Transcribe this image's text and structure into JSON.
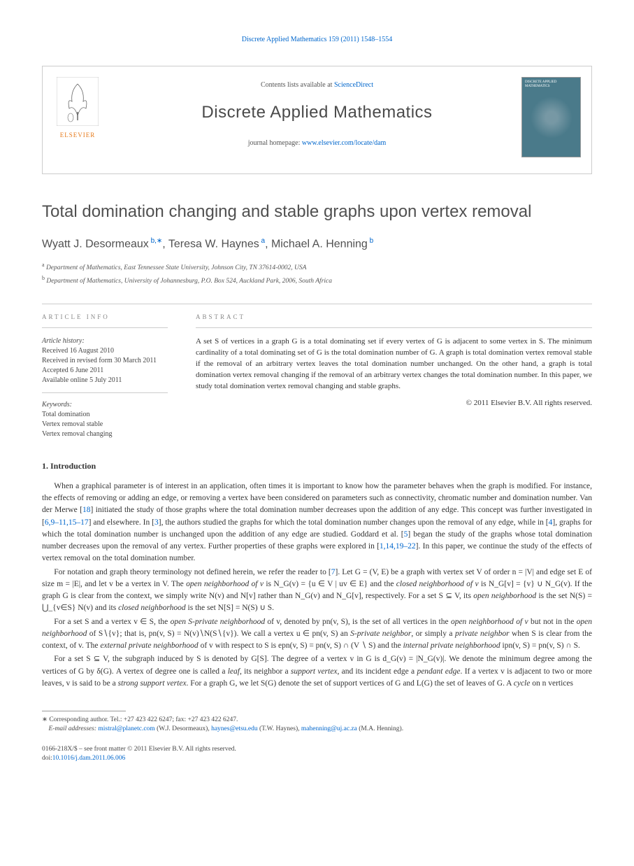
{
  "running_head": {
    "text_before": "Discrete Applied Mathematics 159 (2011) 1548–1554",
    "link_text": "Discrete Applied Mathematics 159 (2011) 1548–1554"
  },
  "header": {
    "contents_prefix": "Contents lists available at ",
    "contents_link": "ScienceDirect",
    "journal_name": "Discrete Applied Mathematics",
    "homepage_prefix": "journal homepage: ",
    "homepage_link": "www.elsevier.com/locate/dam",
    "elsevier_label": "ELSEVIER",
    "cover_title": "DISCRETE APPLIED MATHEMATICS"
  },
  "title": "Total domination changing and stable graphs upon vertex removal",
  "authors_html": "Wyatt J. Desormeaux<sup> b,∗</sup>, Teresa W. Haynes<sup> a</sup>, Michael A. Henning<sup> b</sup>",
  "affiliations": [
    {
      "sup": "a",
      "text": "Department of Mathematics, East Tennessee State University, Johnson City, TN 37614-0002, USA"
    },
    {
      "sup": "b",
      "text": "Department of Mathematics, University of Johannesburg, P.O. Box 524, Auckland Park, 2006, South Africa"
    }
  ],
  "info": {
    "label": "ARTICLE INFO",
    "history_label": "Article history:",
    "history": [
      "Received 16 August 2010",
      "Received in revised form 30 March 2011",
      "Accepted 6 June 2011",
      "Available online 5 July 2011"
    ],
    "keywords_label": "Keywords:",
    "keywords": [
      "Total domination",
      "Vertex removal stable",
      "Vertex removal changing"
    ]
  },
  "abstract": {
    "label": "ABSTRACT",
    "text": "A set S of vertices in a graph G is a total dominating set if every vertex of G is adjacent to some vertex in S. The minimum cardinality of a total dominating set of G is the total domination number of G. A graph is total domination vertex removal stable if the removal of an arbitrary vertex leaves the total domination number unchanged. On the other hand, a graph is total domination vertex removal changing if the removal of an arbitrary vertex changes the total domination number. In this paper, we study total domination vertex removal changing and stable graphs.",
    "copyright": "© 2011 Elsevier B.V. All rights reserved."
  },
  "sections": {
    "intro_heading": "1.  Introduction",
    "para1": "When a graphical parameter is of interest in an application, often times it is important to know how the parameter behaves when the graph is modified. For instance, the effects of removing or adding an edge, or removing a vertex have been considered on parameters such as connectivity, chromatic number and domination number. Van der Merwe [18] initiated the study of those graphs where the total domination number decreases upon the addition of any edge. This concept was further investigated in [6,9–11,15–17] and elsewhere. In [3], the authors studied the graphs for which the total domination number changes upon the removal of any edge, while in [4], graphs for which the total domination number is unchanged upon the addition of any edge are studied. Goddard et al. [5] began the study of the graphs whose total domination number decreases upon the removal of any vertex. Further properties of these graphs were explored in [1,14,19–22]. In this paper, we continue the study of the effects of vertex removal on the total domination number.",
    "para2": "For notation and graph theory terminology not defined herein, we refer the reader to [7]. Let G = (V, E) be a graph with vertex set V of order n = |V| and edge set E of size m = |E|, and let v be a vertex in V. The open neighborhood of v is N_G(v) = {u ∈ V | uv ∈ E} and the closed neighborhood of v is N_G[v] = {v} ∪ N_G(v). If the graph G is clear from the context, we simply write N(v) and N[v] rather than N_G(v) and N_G[v], respectively. For a set S ⊆ V, its open neighborhood is the set N(S) = ⋃_{v∈S} N(v) and its closed neighborhood is the set N[S] = N(S) ∪ S.",
    "para3": "For a set S and a vertex v ∈ S, the open S-private neighborhood of v, denoted by pn(v, S), is the set of all vertices in the open neighborhood of v but not in the open neighborhood of S∖{v}; that is, pn(v, S) = N(v)∖N(S∖{v}). We call a vertex u ∈ pn(v, S) an S-private neighbor, or simply a private neighbor when S is clear from the context, of v. The external private neighborhood of v with respect to S is epn(v, S) = pn(v, S) ∩ (V ∖ S) and the internal private neighborhood ipn(v, S) = pn(v, S) ∩ S.",
    "para4": "For a set S ⊆ V, the subgraph induced by S is denoted by G[S]. The degree of a vertex v in G is d_G(v) = |N_G(v)|. We denote the minimum degree among the vertices of G by δ(G). A vertex of degree one is called a leaf, its neighbor a support vertex, and its incident edge a pendant edge. If a vertex v is adjacent to two or more leaves, v is said to be a strong support vertex. For a graph G, we let S(G) denote the set of support vertices of G and L(G) the set of leaves of G. A cycle on n vertices"
  },
  "footnotes": {
    "corresponding": "∗ Corresponding author. Tel.: +27 423 422 6247; fax: +27 423 422 6247.",
    "email_label": "E-mail addresses:",
    "emails": [
      {
        "addr": "mistral@planetc.com",
        "who": "(W.J. Desormeaux)"
      },
      {
        "addr": "haynes@etsu.edu",
        "who": "(T.W. Haynes)"
      },
      {
        "addr": "mahenning@uj.ac.za",
        "who": "(M.A. Henning)"
      }
    ]
  },
  "footer": {
    "issn": "0166-218X/$ – see front matter © 2011 Elsevier B.V. All rights reserved.",
    "doi_label": "doi:",
    "doi": "10.1016/j.dam.2011.06.006"
  },
  "colors": {
    "link": "#0066cc",
    "text": "#333333",
    "border": "#cccccc",
    "elsevier_orange": "#e67817",
    "cover_bg": "#4a7a8a"
  }
}
